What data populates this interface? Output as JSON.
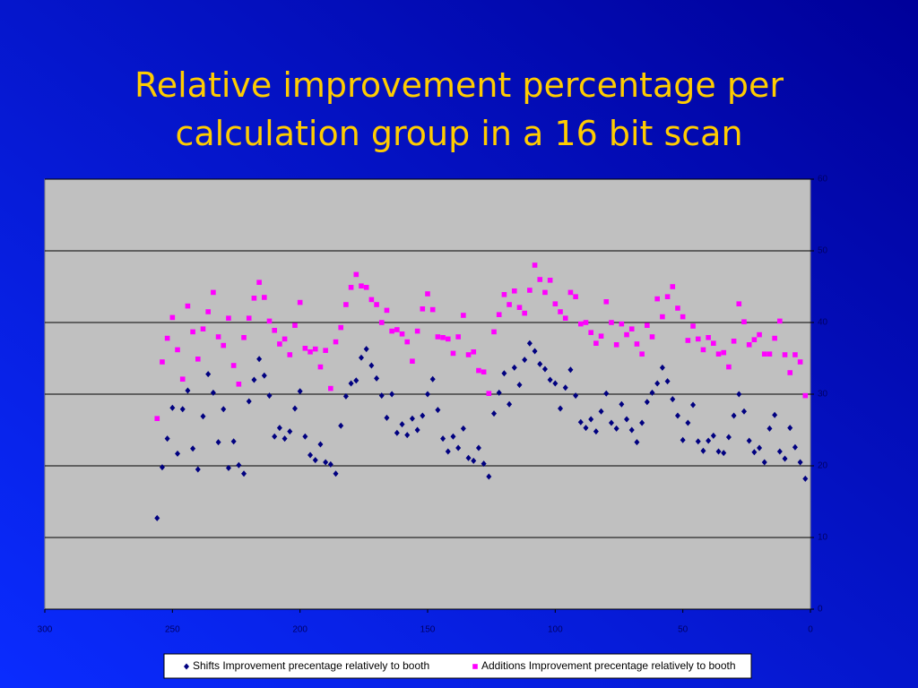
{
  "chart_data": {
    "type": "scatter",
    "title": "Relative improvement percentage per calculation group in a 16 bit scan",
    "x": [
      256,
      254,
      252,
      250,
      248,
      246,
      244,
      242,
      240,
      238,
      236,
      234,
      232,
      230,
      228,
      226,
      224,
      222,
      220,
      218,
      216,
      214,
      212,
      210,
      208,
      206,
      204,
      202,
      200,
      198,
      196,
      194,
      192,
      190,
      188,
      186,
      184,
      182,
      180,
      178,
      176,
      174,
      172,
      170,
      168,
      166,
      164,
      162,
      160,
      158,
      156,
      154,
      152,
      150,
      148,
      146,
      144,
      142,
      140,
      138,
      136,
      134,
      132,
      130,
      128,
      126,
      124,
      122,
      120,
      118,
      116,
      114,
      112,
      110,
      108,
      106,
      104,
      102,
      100,
      98,
      96,
      94,
      92,
      90,
      88,
      86,
      84,
      82,
      80,
      78,
      76,
      74,
      72,
      70,
      68,
      66,
      64,
      62,
      60,
      58,
      56,
      54,
      52,
      50,
      48,
      46,
      44,
      42,
      40,
      38,
      36,
      34,
      32,
      30,
      28,
      26,
      24,
      22,
      20,
      18,
      16,
      14,
      12,
      10,
      8,
      6,
      4,
      2
    ],
    "series": [
      {
        "name": "Shifts Improvement precentage relatively to booth",
        "color": "#000080",
        "marker": "diamond",
        "values": [
          12.7,
          19.8,
          23.8,
          28.1,
          21.7,
          27.9,
          30.5,
          22.4,
          19.5,
          26.9,
          32.8,
          30.2,
          23.3,
          27.9,
          19.7,
          23.4,
          20.1,
          18.9,
          29.0,
          32.0,
          34.9,
          32.6,
          29.8,
          24.1,
          25.3,
          23.8,
          24.8,
          28.0,
          30.4,
          24.1,
          21.5,
          20.8,
          23.0,
          20.5,
          20.2,
          18.9,
          25.6,
          29.7,
          31.5,
          31.9,
          35.1,
          36.3,
          34.0,
          32.2,
          29.8,
          26.7,
          30.0,
          24.6,
          25.8,
          24.3,
          26.6,
          25.0,
          27.0,
          30.0,
          32.1,
          27.8,
          23.8,
          22.0,
          24.1,
          22.5,
          25.2,
          21.1,
          20.7,
          22.5,
          20.3,
          18.5,
          27.3,
          30.2,
          32.9,
          28.6,
          33.7,
          31.3,
          34.8,
          37.1,
          36.0,
          34.2,
          33.5,
          32.0,
          31.5,
          28.0,
          30.9,
          33.4,
          29.8,
          26.1,
          25.3,
          26.5,
          24.8,
          27.6,
          30.1,
          26.0,
          25.2,
          28.6,
          26.5,
          25.0,
          23.3,
          26.0,
          28.9,
          30.2,
          31.5,
          33.7,
          31.8,
          29.3,
          27.0,
          23.6,
          26.0,
          28.5,
          23.4,
          22.1,
          23.5,
          24.2,
          22.0,
          21.8,
          24.0,
          27.0,
          30.0,
          27.6,
          23.5,
          21.9,
          22.5,
          20.5,
          25.2,
          27.1,
          22.0,
          21.0,
          25.3,
          22.6,
          20.5,
          18.2
        ]
      },
      {
        "name": "Additions Improvement precentage relatively to booth",
        "color": "#ff00ff",
        "marker": "square",
        "values": [
          26.6,
          34.5,
          37.8,
          40.7,
          36.2,
          32.1,
          42.3,
          38.7,
          34.9,
          39.1,
          41.5,
          44.2,
          38.0,
          36.8,
          40.6,
          34.0,
          31.4,
          37.9,
          40.6,
          43.4,
          45.6,
          43.5,
          40.2,
          38.9,
          37.0,
          37.7,
          35.5,
          39.6,
          42.8,
          36.4,
          35.9,
          36.3,
          33.8,
          36.1,
          30.8,
          37.3,
          39.3,
          42.5,
          44.9,
          46.7,
          45.1,
          44.9,
          43.2,
          42.5,
          40.0,
          41.7,
          38.8,
          39.0,
          38.4,
          37.3,
          34.6,
          38.8,
          41.9,
          44.0,
          41.8,
          38.0,
          37.9,
          37.7,
          35.7,
          38.0,
          41.0,
          35.5,
          35.9,
          33.3,
          33.1,
          30.1,
          38.7,
          41.1,
          43.9,
          42.5,
          44.4,
          42.1,
          41.3,
          44.5,
          48.0,
          46.0,
          44.2,
          45.9,
          42.6,
          41.5,
          40.6,
          44.2,
          43.6,
          39.8,
          40.0,
          38.6,
          37.1,
          38.1,
          42.9,
          40.0,
          36.9,
          39.8,
          38.3,
          39.1,
          37.0,
          35.6,
          39.6,
          38.0,
          43.3,
          40.8,
          43.6,
          45.0,
          42.0,
          40.8,
          37.5,
          39.5,
          37.7,
          36.2,
          37.9,
          37.1,
          35.6,
          35.8,
          33.8,
          37.4,
          42.6,
          40.1,
          36.9,
          37.6,
          38.3,
          35.6,
          35.6,
          37.8,
          40.2,
          35.5,
          33.0,
          35.5,
          34.5,
          29.8
        ]
      }
    ],
    "xlim": [
      300,
      0
    ],
    "xticks": [
      300,
      250,
      200,
      150,
      100,
      50,
      0
    ],
    "ylim": [
      0,
      60
    ],
    "yticks": [
      0,
      10,
      20,
      30,
      40,
      50,
      60
    ],
    "grid": true,
    "legend": "bottom"
  }
}
